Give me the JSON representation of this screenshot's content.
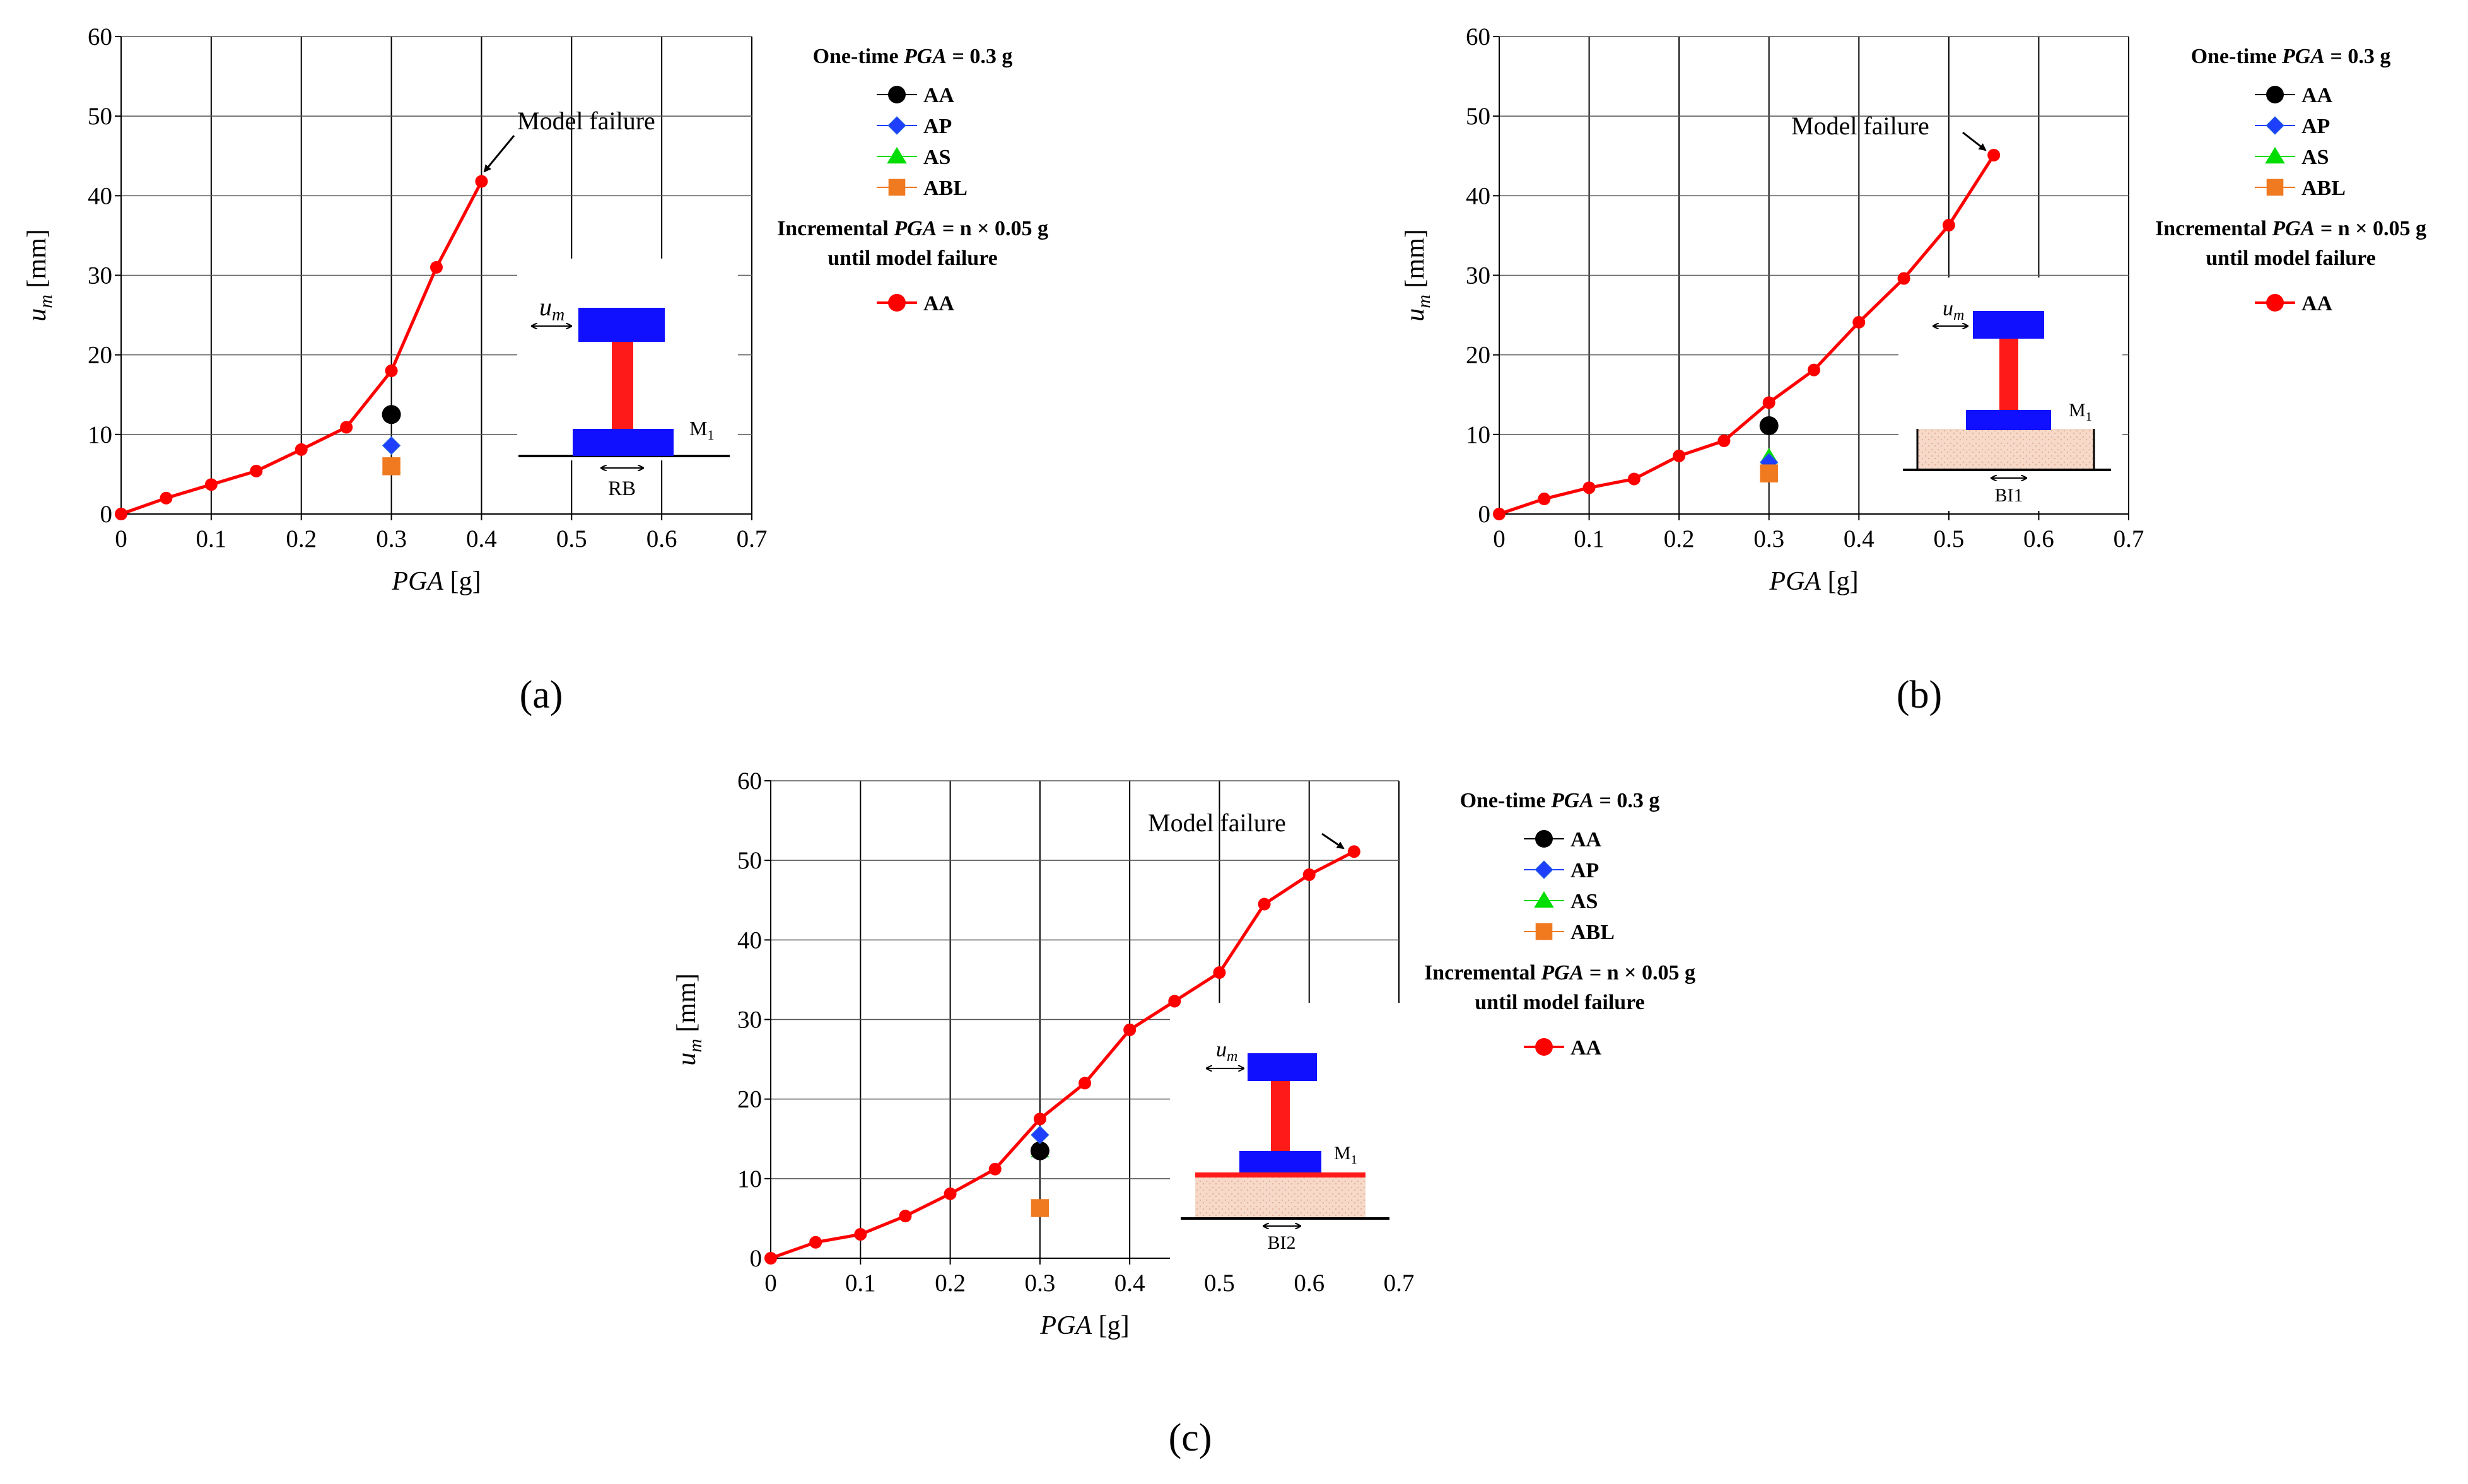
{
  "colors": {
    "incremental": "#ff0000",
    "AA": "#000000",
    "AP": "#1f3fff",
    "AP_edge": "#2a6fd6",
    "AS": "#00dd00",
    "ABL": "#f07a20",
    "grid": "#555555",
    "model_block": "#1010ff",
    "model_column": "#ff1a1a",
    "soil": "#f6d9c8"
  },
  "legend": {
    "onetime_title_pre": "One-time ",
    "onetime_title_var": "PGA",
    "onetime_title_post": " = 0.3 g",
    "incremental_title_pre": "Incremental ",
    "incremental_title_var": "PGA",
    "incremental_title_post": " = n × 0.05 g",
    "incremental_title_line2": "until model failure",
    "items": [
      "AA",
      "AP",
      "AS",
      "ABL"
    ],
    "incremental_item": "AA"
  },
  "axis_labels": {
    "x_var": "PGA",
    "x_unit": " [g]",
    "y_var": "u",
    "y_sub": "m",
    "y_unit": " [mm]"
  },
  "annotation": "Model failure",
  "chart_data": [
    {
      "panel": "(a)",
      "type": "line",
      "xlabel": "PGA [g]",
      "ylabel": "u_m [mm]",
      "xlim": [
        0,
        0.7
      ],
      "ylim": [
        0,
        60
      ],
      "xticks": [
        "0",
        "0.1",
        "0.2",
        "0.3",
        "0.4",
        "0.5",
        "0.6",
        "0.7"
      ],
      "yticks": [
        "0",
        "10",
        "20",
        "30",
        "40",
        "50",
        "60"
      ],
      "grid": true,
      "series": [
        {
          "name": "Incremental AA",
          "x": [
            0,
            0.05,
            0.1,
            0.15,
            0.2,
            0.25,
            0.3,
            0.35,
            0.4
          ],
          "y": [
            0,
            2.0,
            3.7,
            5.4,
            8.1,
            10.9,
            18.0,
            31.0,
            41.8
          ]
        }
      ],
      "onetime_points": [
        {
          "name": "AA",
          "x": 0.3,
          "y": 12.5
        },
        {
          "name": "AP",
          "x": 0.3,
          "y": 8.6
        },
        {
          "name": "AS",
          "x": 0.3,
          "y": 6.0
        },
        {
          "name": "ABL",
          "x": 0.3,
          "y": 6.0
        }
      ],
      "annotation": {
        "text": "Model failure",
        "x": 0.4,
        "y": 41.8
      },
      "inset": {
        "disp_label": "u_m",
        "mass_label": "M1",
        "base_label": "RB",
        "base_type": "rigid"
      }
    },
    {
      "panel": "(b)",
      "type": "line",
      "xlabel": "PGA [g]",
      "ylabel": "u_m [mm]",
      "xlim": [
        0,
        0.7
      ],
      "ylim": [
        0,
        60
      ],
      "xticks": [
        "0",
        "0.1",
        "0.2",
        "0.3",
        "0.4",
        "0.5",
        "0.6",
        "0.7"
      ],
      "yticks": [
        "0",
        "10",
        "20",
        "30",
        "40",
        "50",
        "60"
      ],
      "grid": true,
      "series": [
        {
          "name": "Incremental AA",
          "x": [
            0,
            0.05,
            0.1,
            0.15,
            0.2,
            0.25,
            0.3,
            0.35,
            0.4,
            0.45,
            0.5,
            0.55
          ],
          "y": [
            0,
            1.9,
            3.3,
            4.4,
            7.3,
            9.2,
            14.0,
            18.1,
            24.1,
            29.6,
            36.3,
            45.1
          ]
        }
      ],
      "onetime_points": [
        {
          "name": "AA",
          "x": 0.3,
          "y": 11.1
        },
        {
          "name": "AP",
          "x": 0.3,
          "y": 6.5
        },
        {
          "name": "AS",
          "x": 0.3,
          "y": 7.2
        },
        {
          "name": "ABL",
          "x": 0.3,
          "y": 5.1
        }
      ],
      "annotation": {
        "text": "Model failure",
        "x": 0.55,
        "y": 45.1
      },
      "inset": {
        "disp_label": "u_m",
        "mass_label": "M1",
        "base_label": "BI1",
        "base_type": "soil"
      }
    },
    {
      "panel": "(c)",
      "type": "line",
      "xlabel": "PGA [g]",
      "ylabel": "u_m [mm]",
      "xlim": [
        0,
        0.7
      ],
      "ylim": [
        0,
        60
      ],
      "xticks": [
        "0",
        "0.1",
        "0.2",
        "0.3",
        "0.4",
        "0.5",
        "0.6",
        "0.7"
      ],
      "yticks": [
        "0",
        "10",
        "20",
        "30",
        "40",
        "50",
        "60"
      ],
      "grid": true,
      "series": [
        {
          "name": "Incremental AA",
          "x": [
            0,
            0.05,
            0.1,
            0.15,
            0.2,
            0.25,
            0.3,
            0.35,
            0.4,
            0.45,
            0.5,
            0.55,
            0.6,
            0.65
          ],
          "y": [
            0,
            2.0,
            3.0,
            5.3,
            8.1,
            11.2,
            17.5,
            22.0,
            28.7,
            32.3,
            35.9,
            44.5,
            48.2,
            51.1
          ]
        }
      ],
      "onetime_points": [
        {
          "name": "AA",
          "x": 0.3,
          "y": 13.5
        },
        {
          "name": "AP",
          "x": 0.3,
          "y": 15.5
        },
        {
          "name": "AS",
          "x": 0.3,
          "y": 13.5
        },
        {
          "name": "ABL",
          "x": 0.3,
          "y": 6.3
        }
      ],
      "annotation": {
        "text": "Model failure",
        "x": 0.65,
        "y": 51.1
      },
      "inset": {
        "disp_label": "u_m",
        "mass_label": "M1",
        "base_label": "BI2",
        "base_type": "soil_mat"
      }
    }
  ]
}
